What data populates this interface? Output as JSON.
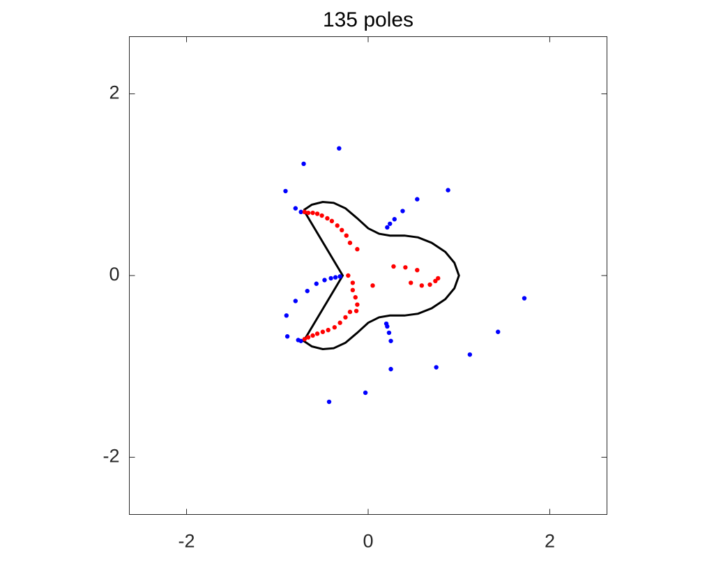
{
  "chart_data": {
    "type": "scatter",
    "title": "135 poles",
    "xlim": [
      -2.63,
      2.63
    ],
    "ylim": [
      -2.63,
      2.63
    ],
    "xticks": [
      -2,
      0,
      2
    ],
    "yticks": [
      -2,
      0,
      2
    ],
    "series": [
      {
        "type": "line",
        "color": "#000000",
        "x": [
          -0.71,
          -0.62,
          -0.5,
          -0.38,
          -0.25,
          -0.12,
          0.0,
          0.12,
          0.24,
          0.4,
          0.55,
          0.7,
          0.85,
          0.95,
          1.0,
          0.95,
          0.85,
          0.7,
          0.55,
          0.4,
          0.24,
          0.12,
          0.0,
          -0.12,
          -0.25,
          -0.38,
          -0.5,
          -0.62,
          -0.71,
          -0.28,
          -0.71
        ],
        "y": [
          0.72,
          0.78,
          0.81,
          0.8,
          0.74,
          0.63,
          0.52,
          0.46,
          0.44,
          0.44,
          0.42,
          0.36,
          0.26,
          0.14,
          0.0,
          -0.14,
          -0.26,
          -0.36,
          -0.42,
          -0.44,
          -0.44,
          -0.46,
          -0.52,
          -0.63,
          -0.74,
          -0.8,
          -0.81,
          -0.78,
          -0.72,
          0.0,
          0.72
        ]
      },
      {
        "type": "scatter",
        "color": "#0000ff",
        "x": [
          -0.32,
          -0.71,
          -0.91,
          0.88,
          0.54,
          0.38,
          0.29,
          0.24,
          0.21,
          -0.8,
          -0.74,
          1.72,
          1.43,
          1.12,
          0.75,
          0.25,
          -0.03,
          -0.43,
          0.25,
          0.23,
          0.21,
          0.2,
          -0.89,
          -0.9,
          -0.8,
          -0.67,
          -0.57,
          -0.48,
          -0.41,
          -0.36,
          -0.31,
          -0.77,
          -0.74
        ],
        "y": [
          1.4,
          1.23,
          0.93,
          0.94,
          0.84,
          0.71,
          0.62,
          0.57,
          0.53,
          0.74,
          0.7,
          -0.25,
          -0.62,
          -0.87,
          -1.01,
          -1.03,
          -1.29,
          -1.39,
          -0.72,
          -0.63,
          -0.56,
          -0.53,
          -0.67,
          -0.44,
          -0.28,
          -0.17,
          -0.09,
          -0.05,
          -0.03,
          -0.02,
          -0.01,
          -0.71,
          -0.72
        ]
      },
      {
        "type": "scatter",
        "color": "#ff0000",
        "x": [
          -0.7,
          -0.66,
          -0.61,
          -0.56,
          -0.51,
          -0.45,
          -0.4,
          -0.34,
          -0.29,
          -0.24,
          -0.2,
          -0.12,
          -0.22,
          -0.17,
          -0.17,
          -0.14,
          -0.12,
          -0.13,
          0.05,
          -0.7,
          -0.66,
          -0.61,
          -0.56,
          -0.5,
          -0.44,
          -0.37,
          -0.31,
          -0.25,
          -0.2,
          0.28,
          0.41,
          0.54,
          0.47,
          0.59,
          0.68,
          0.74,
          0.77
        ],
        "y": [
          0.7,
          0.69,
          0.69,
          0.68,
          0.66,
          0.63,
          0.6,
          0.55,
          0.5,
          0.44,
          0.36,
          0.29,
          0.0,
          -0.08,
          -0.16,
          -0.24,
          -0.32,
          -0.39,
          -0.11,
          -0.7,
          -0.68,
          -0.66,
          -0.64,
          -0.62,
          -0.6,
          -0.57,
          -0.52,
          -0.46,
          -0.4,
          0.1,
          0.09,
          0.06,
          -0.08,
          -0.11,
          -0.1,
          -0.06,
          -0.03
        ]
      }
    ]
  }
}
